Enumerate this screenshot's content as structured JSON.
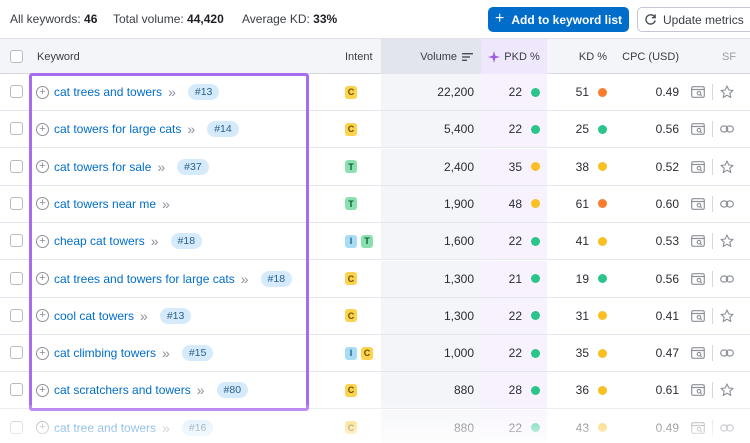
{
  "summary": {
    "all_keywords_label": "All keywords:",
    "all_keywords_value": "46",
    "total_volume_label": "Total volume:",
    "total_volume_value": "44,420",
    "avg_kd_label": "Average KD:",
    "avg_kd_value": "33%"
  },
  "toolbar": {
    "add_label": "Add to keyword list",
    "update_label": "Update metrics"
  },
  "columns": {
    "keyword": "Keyword",
    "intent": "Intent",
    "volume": "Volume",
    "pkd": "PKD %",
    "kd": "KD %",
    "cpc": "CPC (USD)",
    "serp": "SF"
  },
  "colors": {
    "link": "#006dca",
    "pkd_highlight": "#f7f2fe",
    "selection_border": "#a86cf0",
    "dot_green": "#2bc48a",
    "dot_yellow": "#fbbf24",
    "dot_orange": "#fa7d2c"
  },
  "rows": [
    {
      "keyword": "cat trees and towers",
      "serp": "#13",
      "intents": [
        "C"
      ],
      "volume": "22,200",
      "pkd": "22",
      "pkd_color": "green",
      "kd": "51",
      "kd_color": "orange",
      "cpc": "0.49"
    },
    {
      "keyword": "cat towers for large cats",
      "serp": "#14",
      "intents": [
        "C"
      ],
      "volume": "5,400",
      "pkd": "22",
      "pkd_color": "green",
      "kd": "25",
      "kd_color": "green",
      "cpc": "0.56"
    },
    {
      "keyword": "cat towers for sale",
      "serp": "#37",
      "intents": [
        "T"
      ],
      "volume": "2,400",
      "pkd": "35",
      "pkd_color": "yellow",
      "kd": "38",
      "kd_color": "yellow",
      "cpc": "0.52"
    },
    {
      "keyword": "cat towers near me",
      "serp": "",
      "intents": [
        "T"
      ],
      "volume": "1,900",
      "pkd": "48",
      "pkd_color": "yellow",
      "kd": "61",
      "kd_color": "orange",
      "cpc": "0.60"
    },
    {
      "keyword": "cheap cat towers",
      "serp": "#18",
      "intents": [
        "I",
        "T"
      ],
      "volume": "1,600",
      "pkd": "22",
      "pkd_color": "green",
      "kd": "41",
      "kd_color": "yellow",
      "cpc": "0.53"
    },
    {
      "keyword": "cat trees and towers for large cats",
      "serp": "#18",
      "intents": [
        "C"
      ],
      "volume": "1,300",
      "pkd": "21",
      "pkd_color": "green",
      "kd": "19",
      "kd_color": "green",
      "cpc": "0.56"
    },
    {
      "keyword": "cool cat towers",
      "serp": "#13",
      "intents": [
        "C"
      ],
      "volume": "1,300",
      "pkd": "22",
      "pkd_color": "green",
      "kd": "31",
      "kd_color": "yellow",
      "cpc": "0.41"
    },
    {
      "keyword": "cat climbing towers",
      "serp": "#15",
      "intents": [
        "I",
        "C"
      ],
      "volume": "1,000",
      "pkd": "22",
      "pkd_color": "green",
      "kd": "35",
      "kd_color": "yellow",
      "cpc": "0.47"
    },
    {
      "keyword": "cat scratchers and towers",
      "serp": "#80",
      "intents": [
        "C"
      ],
      "volume": "880",
      "pkd": "28",
      "pkd_color": "green",
      "kd": "36",
      "kd_color": "yellow",
      "cpc": "0.61"
    },
    {
      "keyword": "cat tree and towers",
      "serp": "#16",
      "intents": [
        "C"
      ],
      "volume": "880",
      "pkd": "22",
      "pkd_color": "green",
      "kd": "43",
      "kd_color": "yellow",
      "cpc": "0.49"
    }
  ]
}
